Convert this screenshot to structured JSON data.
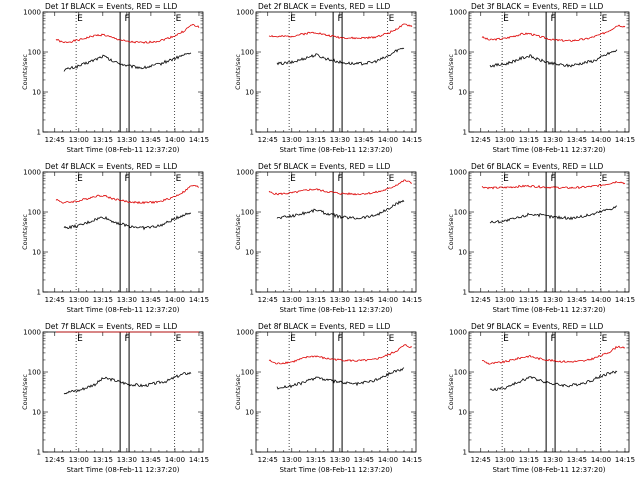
{
  "figure": {
    "x_tick_labels": [
      "12:45",
      "13:00",
      "13:15",
      "13:30",
      "13:45",
      "14:00",
      "14:15"
    ],
    "y_tick_labels": [
      "1",
      "10",
      "100",
      "1000"
    ],
    "ylabel": "Counts/sec",
    "xlabel": "Start Time (08-Feb-11 12:37:20)",
    "markers": [
      "E",
      "F",
      "E"
    ],
    "colors": {
      "events": "#000000",
      "lld": "#dd0000"
    }
  },
  "chart_data": [
    {
      "type": "line",
      "title": "Det 1f BLACK = Events, RED = LLD",
      "ylabel": "Counts/sec",
      "xlabel": "Start Time (08-Feb-11 12:37:20)",
      "yscale": "log",
      "ylim": [
        1,
        1000
      ],
      "xlim": [
        "12:37:20",
        "14:17:00"
      ],
      "x": [
        "12:45",
        "12:50",
        "13:00",
        "13:10",
        "13:15",
        "13:20",
        "13:30",
        "13:40",
        "13:50",
        "13:55",
        "14:00",
        "14:05",
        "14:10",
        "14:15"
      ],
      "series": [
        {
          "name": "Events",
          "color": "#000000",
          "values": [
            null,
            35,
            45,
            65,
            80,
            60,
            45,
            40,
            50,
            60,
            70,
            85,
            95,
            null
          ]
        },
        {
          "name": "LLD",
          "color": "#dd0000",
          "values": [
            210,
            170,
            200,
            260,
            270,
            230,
            180,
            170,
            190,
            220,
            260,
            330,
            480,
            420
          ]
        }
      ]
    },
    {
      "type": "line",
      "title": "Det 2f BLACK = Events, RED = LLD",
      "ylabel": "Counts/sec",
      "xlabel": "Start Time (08-Feb-11 12:37:20)",
      "yscale": "log",
      "ylim": [
        1,
        1000
      ],
      "xlim": [
        "12:37:20",
        "14:17:00"
      ],
      "x": [
        "12:45",
        "12:50",
        "13:00",
        "13:10",
        "13:15",
        "13:20",
        "13:30",
        "13:40",
        "13:50",
        "13:55",
        "14:00",
        "14:05",
        "14:10",
        "14:15"
      ],
      "series": [
        {
          "name": "Events",
          "color": "#000000",
          "values": [
            null,
            50,
            55,
            75,
            85,
            70,
            55,
            50,
            55,
            65,
            80,
            110,
            130,
            null
          ]
        },
        {
          "name": "LLD",
          "color": "#dd0000",
          "values": [
            260,
            240,
            250,
            300,
            310,
            270,
            230,
            220,
            230,
            260,
            300,
            380,
            490,
            440
          ]
        }
      ]
    },
    {
      "type": "line",
      "title": "Det 3f BLACK = Events, RED = LLD",
      "ylabel": "Counts/sec",
      "xlabel": "Start Time (08-Feb-11 12:37:20)",
      "yscale": "log",
      "ylim": [
        1,
        1000
      ],
      "xlim": [
        "12:37:20",
        "14:17:00"
      ],
      "x": [
        "12:45",
        "12:50",
        "13:00",
        "13:10",
        "13:15",
        "13:20",
        "13:30",
        "13:40",
        "13:50",
        "13:55",
        "14:00",
        "14:05",
        "14:10",
        "14:15"
      ],
      "series": [
        {
          "name": "Events",
          "color": "#000000",
          "values": [
            null,
            45,
            50,
            70,
            80,
            65,
            50,
            45,
            55,
            60,
            75,
            95,
            110,
            null
          ]
        },
        {
          "name": "LLD",
          "color": "#dd0000",
          "values": [
            240,
            200,
            220,
            280,
            290,
            250,
            200,
            190,
            210,
            240,
            280,
            350,
            470,
            430
          ]
        }
      ]
    },
    {
      "type": "line",
      "title": "Det 4f BLACK = Events, RED = LLD",
      "ylabel": "Counts/sec",
      "xlabel": "Start Time (08-Feb-11 12:37:20)",
      "yscale": "log",
      "ylim": [
        1,
        1000
      ],
      "xlim": [
        "12:37:20",
        "14:17:00"
      ],
      "x": [
        "12:45",
        "12:50",
        "13:00",
        "13:10",
        "13:15",
        "13:20",
        "13:30",
        "13:40",
        "13:50",
        "13:55",
        "14:00",
        "14:05",
        "14:10",
        "14:15"
      ],
      "series": [
        {
          "name": "Events",
          "color": "#000000",
          "values": [
            null,
            40,
            45,
            65,
            75,
            60,
            45,
            40,
            45,
            55,
            70,
            85,
            95,
            null
          ]
        },
        {
          "name": "LLD",
          "color": "#dd0000",
          "values": [
            210,
            170,
            190,
            250,
            260,
            220,
            180,
            170,
            180,
            210,
            250,
            320,
            460,
            420
          ]
        }
      ]
    },
    {
      "type": "line",
      "title": "Det 5f BLACK = Events, RED = LLD",
      "ylabel": "Counts/sec",
      "xlabel": "Start Time (08-Feb-11 12:37:20)",
      "yscale": "log",
      "ylim": [
        1,
        1000
      ],
      "xlim": [
        "12:37:20",
        "14:17:00"
      ],
      "x": [
        "12:45",
        "12:50",
        "13:00",
        "13:10",
        "13:15",
        "13:20",
        "13:30",
        "13:40",
        "13:50",
        "13:55",
        "14:00",
        "14:05",
        "14:10",
        "14:15"
      ],
      "series": [
        {
          "name": "Events",
          "color": "#000000",
          "values": [
            null,
            70,
            80,
            100,
            115,
            95,
            75,
            70,
            80,
            95,
            120,
            160,
            200,
            null
          ]
        },
        {
          "name": "LLD",
          "color": "#dd0000",
          "values": [
            320,
            280,
            300,
            360,
            370,
            330,
            290,
            280,
            300,
            330,
            380,
            480,
            620,
            520
          ]
        }
      ]
    },
    {
      "type": "line",
      "title": "Det 6f BLACK = Events, RED = LLD",
      "ylabel": "Counts/sec",
      "xlabel": "Start Time (08-Feb-11 12:37:20)",
      "yscale": "log",
      "ylim": [
        1,
        1000
      ],
      "xlim": [
        "12:37:20",
        "14:17:00"
      ],
      "x": [
        "12:45",
        "12:50",
        "13:00",
        "13:10",
        "13:15",
        "13:20",
        "13:30",
        "13:40",
        "13:50",
        "13:55",
        "14:00",
        "14:05",
        "14:10",
        "14:15"
      ],
      "series": [
        {
          "name": "Events",
          "color": "#000000",
          "values": [
            null,
            55,
            60,
            75,
            90,
            85,
            75,
            70,
            80,
            90,
            105,
            120,
            140,
            null
          ]
        },
        {
          "name": "LLD",
          "color": "#dd0000",
          "values": [
            430,
            400,
            410,
            440,
            450,
            430,
            410,
            400,
            420,
            440,
            470,
            520,
            580,
            520
          ]
        }
      ]
    },
    {
      "type": "line",
      "title": "Det 7f BLACK = Events, RED = LLD",
      "ylabel": "Counts/sec",
      "xlabel": "Start Time (08-Feb-11 12:37:20)",
      "yscale": "log",
      "ylim": [
        1,
        1000
      ],
      "xlim": [
        "12:37:20",
        "14:17:00"
      ],
      "x": [
        "12:45",
        "12:50",
        "13:00",
        "13:10",
        "13:15",
        "13:20",
        "13:30",
        "13:40",
        "13:50",
        "13:55",
        "14:00",
        "14:05",
        "14:10",
        "14:15"
      ],
      "series": [
        {
          "name": "Events",
          "color": "#000000",
          "values": [
            null,
            30,
            35,
            50,
            70,
            65,
            50,
            45,
            55,
            60,
            75,
            90,
            95,
            null
          ]
        },
        {
          "name": "LLD",
          "color": "#dd0000",
          "values": [
            1000,
            1000,
            1000,
            1000,
            1000,
            1000,
            1000,
            1000,
            1000,
            1000,
            1000,
            1000,
            1000,
            1000
          ]
        }
      ]
    },
    {
      "type": "line",
      "title": "Det 8f BLACK = Events, RED = LLD",
      "ylabel": "Counts/sec",
      "xlabel": "Start Time (08-Feb-11 12:37:20)",
      "yscale": "log",
      "ylim": [
        1,
        1000
      ],
      "xlim": [
        "12:37:20",
        "14:17:00"
      ],
      "x": [
        "12:45",
        "12:50",
        "13:00",
        "13:10",
        "13:15",
        "13:20",
        "13:30",
        "13:40",
        "13:50",
        "13:55",
        "14:00",
        "14:05",
        "14:10",
        "14:15"
      ],
      "series": [
        {
          "name": "Events",
          "color": "#000000",
          "values": [
            null,
            40,
            45,
            60,
            75,
            65,
            55,
            50,
            60,
            70,
            90,
            110,
            120,
            null
          ]
        },
        {
          "name": "LLD",
          "color": "#dd0000",
          "values": [
            200,
            160,
            180,
            240,
            250,
            220,
            200,
            190,
            200,
            230,
            270,
            340,
            470,
            400
          ]
        }
      ]
    },
    {
      "type": "line",
      "title": "Det 9f BLACK = Events, RED = LLD",
      "ylabel": "Counts/sec",
      "xlabel": "Start Time (08-Feb-11 12:37:20)",
      "yscale": "log",
      "ylim": [
        1,
        1000
      ],
      "xlim": [
        "12:37:20",
        "14:17:00"
      ],
      "x": [
        "12:45",
        "12:50",
        "13:00",
        "13:10",
        "13:15",
        "13:20",
        "13:30",
        "13:40",
        "13:50",
        "13:55",
        "14:00",
        "14:05",
        "14:10",
        "14:15"
      ],
      "series": [
        {
          "name": "Events",
          "color": "#000000",
          "values": [
            null,
            35,
            40,
            60,
            75,
            65,
            50,
            45,
            55,
            65,
            80,
            95,
            100,
            null
          ]
        },
        {
          "name": "LLD",
          "color": "#dd0000",
          "values": [
            200,
            160,
            180,
            230,
            250,
            220,
            190,
            180,
            190,
            220,
            260,
            320,
            440,
            380
          ]
        }
      ]
    }
  ]
}
